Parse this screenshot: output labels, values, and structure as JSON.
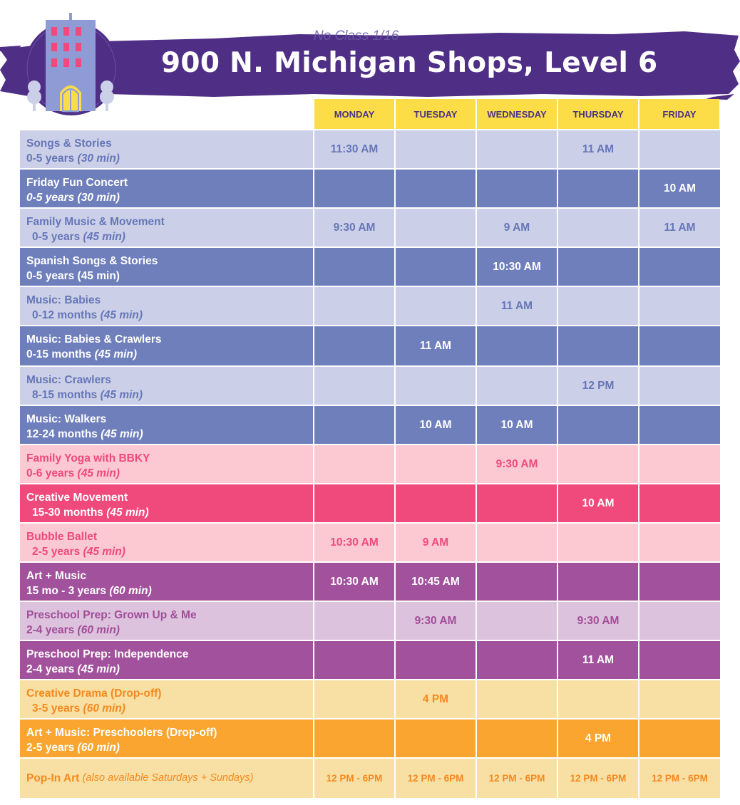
{
  "banner": {
    "note": "No Class 1/16",
    "title": "900 N. Michigan Shops, Level 6"
  },
  "logo": {
    "icon": "building-icon"
  },
  "days": [
    "MONDAY",
    "TUESDAY",
    "WEDNESDAY",
    "THURSDAY",
    "FRIDAY"
  ],
  "colors": {
    "banner": "#4f2f86",
    "header": "#fcdd47",
    "light_blue": "#cbd0e8",
    "dark_blue": "#6f7fbc",
    "light_pink": "#fcc8d1",
    "dark_pink": "#f0497b",
    "dark_purple": "#a2519c",
    "light_purple": "#dcc2dc",
    "light_orange": "#f8dfa3",
    "dark_orange": "#f9a52f"
  },
  "classes": [
    {
      "name": "Songs & Stories",
      "age": "0-5 years",
      "duration": "(30 min)",
      "age_italic": false,
      "indent": false,
      "style": "light-blue",
      "times": [
        "11:30 AM",
        "",
        "",
        "11 AM",
        ""
      ]
    },
    {
      "name": "Friday Fun Concert",
      "age": "0-5 years",
      "duration": "(30 min)",
      "age_italic": true,
      "indent": false,
      "style": "dark-blue",
      "times": [
        "",
        "",
        "",
        "",
        "10 AM"
      ]
    },
    {
      "name": "Family Music & Movement",
      "age": "0-5 years",
      "duration": "(45 min)",
      "age_italic": false,
      "indent": true,
      "style": "light-blue",
      "times": [
        "9:30 AM",
        "",
        "9 AM",
        "",
        "11 AM"
      ]
    },
    {
      "name": "Spanish Songs & Stories",
      "age": "0-5 years",
      "duration": "(45 min)",
      "age_italic": false,
      "dur_plain": true,
      "indent": false,
      "style": "dark-blue",
      "times": [
        "",
        "",
        "10:30 AM",
        "",
        ""
      ]
    },
    {
      "name": "Music: Babies",
      "age": "0-12 months",
      "duration": "(45 min)",
      "age_italic": false,
      "indent": true,
      "style": "light-blue",
      "times": [
        "",
        "",
        "11 AM",
        "",
        ""
      ]
    },
    {
      "name": "Music: Babies & Crawlers",
      "age": "0-15 months",
      "duration": "(45 min)",
      "age_italic": false,
      "indent": false,
      "style": "dark-blue",
      "tall": true,
      "times": [
        "",
        "11 AM",
        "",
        "",
        ""
      ]
    },
    {
      "name": "Music: Crawlers",
      "age": "8-15 months",
      "duration": "(45 min)",
      "age_italic": false,
      "indent": true,
      "style": "light-blue",
      "times": [
        "",
        "",
        "",
        "12 PM",
        ""
      ]
    },
    {
      "name": "Music: Walkers",
      "age": "12-24 months",
      "duration": "(45 min)",
      "age_italic": false,
      "indent": false,
      "style": "dark-blue",
      "times": [
        "",
        "10 AM",
        "10 AM",
        "",
        ""
      ]
    },
    {
      "name": "Family Yoga with BBKY",
      "age": "0-6 years",
      "duration": "(45 min)",
      "age_italic": false,
      "indent": false,
      "style": "light-pink",
      "times": [
        "",
        "",
        "9:30 AM",
        "",
        ""
      ]
    },
    {
      "name": "Creative Movement",
      "age": "15-30 months",
      "duration": "(45 min)",
      "age_italic": false,
      "indent": true,
      "style": "dark-pink",
      "times": [
        "",
        "",
        "",
        "10 AM",
        ""
      ]
    },
    {
      "name": "Bubble Ballet",
      "age": "2-5 years",
      "duration": "(45 min)",
      "age_italic": false,
      "indent": true,
      "style": "light-pink",
      "times": [
        "10:30 AM",
        "9 AM",
        "",
        "",
        ""
      ]
    },
    {
      "name": "Art + Music",
      "age": "15 mo - 3 years",
      "duration": "(60 min)",
      "age_italic": false,
      "indent": false,
      "style": "dark-purple",
      "times": [
        "10:30 AM",
        "10:45 AM",
        "",
        "",
        ""
      ]
    },
    {
      "name": "Preschool Prep: Grown Up & Me",
      "age": "2-4 years",
      "duration": "(60 min)",
      "age_italic": false,
      "indent": false,
      "style": "light-purple",
      "times": [
        "",
        "9:30 AM",
        "",
        "9:30 AM",
        ""
      ]
    },
    {
      "name": "Preschool Prep: Independence",
      "age": "2-4 years",
      "duration": "(45 min)",
      "age_italic": false,
      "indent": false,
      "style": "dark-purple",
      "times": [
        "",
        "",
        "",
        "11 AM",
        ""
      ]
    },
    {
      "name": "Creative Drama (Drop-off)",
      "age": "3-5 years",
      "duration": "(60 min)",
      "age_italic": false,
      "indent": true,
      "style": "light-orange",
      "times": [
        "",
        "4 PM",
        "",
        "",
        ""
      ]
    },
    {
      "name": "Art + Music: Preschoolers (Drop-off)",
      "age": "2-5 years",
      "duration": "(60 min)",
      "age_italic": false,
      "indent": false,
      "style": "dark-orange",
      "times": [
        "",
        "",
        "",
        "4 PM",
        ""
      ]
    }
  ],
  "pop_in": {
    "name": "Pop-In Art",
    "aside": "(also available Saturdays + Sundays)",
    "style": "light-orange",
    "times": [
      "12 PM - 6PM",
      "12 PM - 6PM",
      "12 PM - 6PM",
      "12 PM - 6PM",
      "12 PM - 6PM"
    ]
  }
}
